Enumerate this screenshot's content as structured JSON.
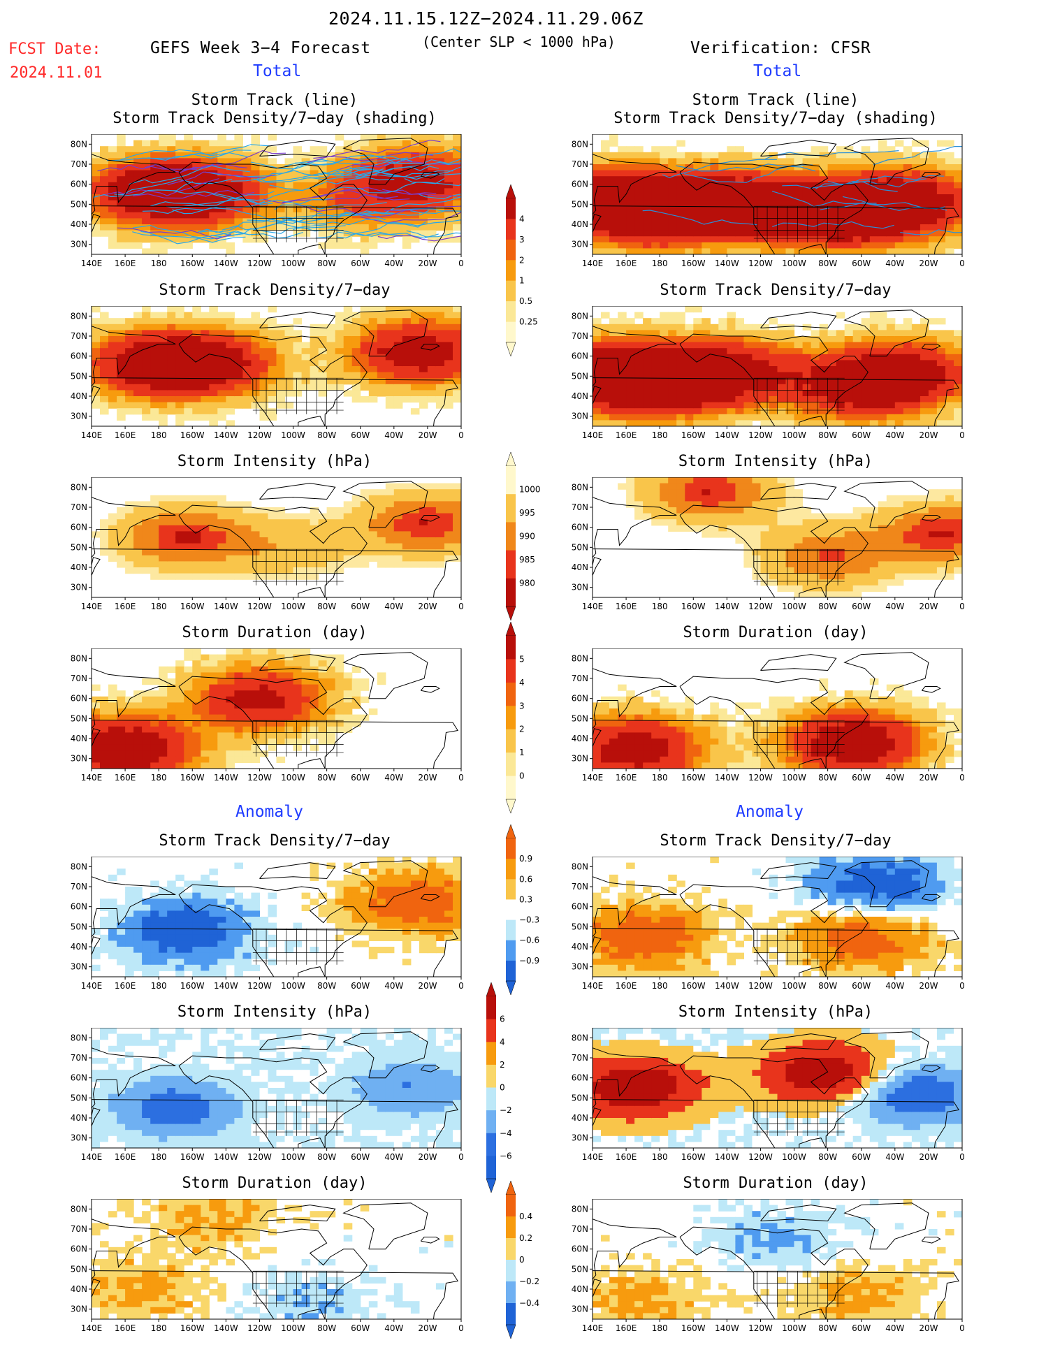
{
  "header": {
    "date_range": "2024.11.15.12Z−2024.11.29.06Z",
    "center_note": "(Center SLP < 1000 hPa)",
    "fcst_label": "FCST Date:",
    "fcst_date": "2024.11.01",
    "forecast_title": "GEFS Week 3−4 Forecast",
    "verification_title": "Verification: CFSR",
    "total_label": "Total",
    "anomaly_label": "Anomaly"
  },
  "panel_titles": {
    "track_line": "Storm Track (line)",
    "track_density_shading": "Storm Track Density/7−day (shading)",
    "track_density": "Storm Track Density/7−day",
    "intensity": "Storm Intensity (hPa)",
    "duration": "Storm Duration (day)"
  },
  "axes": {
    "lat_labels": [
      "80N",
      "70N",
      "60N",
      "50N",
      "40N",
      "30N"
    ],
    "lon_labels": [
      "140E",
      "160E",
      "180",
      "160W",
      "140W",
      "120W",
      "100W",
      "80W",
      "60W",
      "40W",
      "20W",
      "0"
    ]
  },
  "colorbars": [
    {
      "id": "density",
      "labels": [
        "4",
        "3",
        "2",
        "1",
        "0.5",
        "0.25"
      ],
      "colors": [
        "#b80f0a",
        "#e8341c",
        "#f0640f",
        "#f79b0e",
        "#f9c54a",
        "#fbe897",
        "#fff8cc"
      ]
    },
    {
      "id": "intensity",
      "labels": [
        "1000",
        "995",
        "990",
        "985",
        "980"
      ],
      "colors": [
        "#fff8cc",
        "#f9c54a",
        "#f0871a",
        "#e8341c",
        "#b80f0a"
      ]
    },
    {
      "id": "duration",
      "labels": [
        "5",
        "4",
        "3",
        "2",
        "1",
        "0"
      ],
      "colors": [
        "#b80f0a",
        "#e8341c",
        "#f0640f",
        "#f79b0e",
        "#f9c54a",
        "#fbe897",
        "#fff8cc"
      ]
    },
    {
      "id": "density_anom",
      "labels": [
        "0.9",
        "0.6",
        "0.3",
        "−0.3",
        "−0.6",
        "−0.9"
      ],
      "colors": [
        "#f0640f",
        "#f79b0e",
        "#f9c54a",
        "#ffffff",
        "#bde8f8",
        "#4f9bf0",
        "#1f63d6"
      ]
    },
    {
      "id": "intensity_anom",
      "labels": [
        "6",
        "4",
        "2",
        "0",
        "−2",
        "−4",
        "−6"
      ],
      "colors": [
        "#b80f0a",
        "#e8341c",
        "#f79b0e",
        "#f9d76a",
        "#bde8f8",
        "#6fb0f2",
        "#2c6fe0",
        "#1f63d6"
      ]
    },
    {
      "id": "duration_anom",
      "labels": [
        "0.4",
        "0.2",
        "0",
        "−0.2",
        "−0.4"
      ],
      "colors": [
        "#f0640f",
        "#f79b0e",
        "#f9d76a",
        "#bde8f8",
        "#6fb0f2",
        "#1f63d6"
      ]
    }
  ],
  "chart_data": [
    {
      "type": "heatmap",
      "panel": "forecast-total-track",
      "title": "Storm Track (line)",
      "subtitle": "Storm Track Density/7−day (shading)",
      "ylim": [
        25,
        85
      ],
      "unit": "storms/7-day",
      "hotspots": [
        {
          "lon": 175,
          "lat": 56,
          "value": 3.5
        },
        {
          "lon": -155,
          "lat": 56,
          "value": 3.5
        },
        {
          "lon": -25,
          "lat": 62,
          "value": 3.5
        },
        {
          "lon": -60,
          "lat": 52,
          "value": 1.5
        }
      ]
    },
    {
      "type": "heatmap",
      "panel": "verif-total-track",
      "title": "Storm Track (line)",
      "subtitle": "Storm Track Density/7−day (shading)",
      "ylim": [
        25,
        85
      ],
      "hotspots": [
        {
          "lon": 150,
          "lat": 52,
          "value": 4
        },
        {
          "lon": 178,
          "lat": 46,
          "value": 4
        },
        {
          "lon": -140,
          "lat": 50,
          "value": 4
        },
        {
          "lon": -100,
          "lat": 47,
          "value": 3
        },
        {
          "lon": -62,
          "lat": 45,
          "value": 4
        },
        {
          "lon": -30,
          "lat": 52,
          "value": 3.5
        }
      ]
    },
    {
      "type": "heatmap",
      "panel": "forecast-total-density",
      "title": "Storm Track Density/7−day",
      "ylim": [
        25,
        85
      ],
      "hotspots": [
        {
          "lon": 175,
          "lat": 56,
          "value": 3.5
        },
        {
          "lon": -150,
          "lat": 56,
          "value": 3.5
        },
        {
          "lon": -25,
          "lat": 62,
          "value": 4
        }
      ]
    },
    {
      "type": "heatmap",
      "panel": "verif-total-density",
      "title": "Storm Track Density/7−day",
      "ylim": [
        25,
        85
      ],
      "hotspots": [
        {
          "lon": 150,
          "lat": 52,
          "value": 4
        },
        {
          "lon": 178,
          "lat": 46,
          "value": 4
        },
        {
          "lon": -140,
          "lat": 52,
          "value": 4
        },
        {
          "lon": -62,
          "lat": 45,
          "value": 4
        },
        {
          "lon": -30,
          "lat": 52,
          "value": 3
        }
      ]
    },
    {
      "type": "heatmap",
      "panel": "forecast-total-intensity",
      "title": "Storm Intensity (hPa)",
      "ylim": [
        25,
        85
      ],
      "unit": "hPa",
      "hotspots": [
        {
          "lon": -165,
          "lat": 55,
          "value": 982
        },
        {
          "lon": -20,
          "lat": 62,
          "value": 982
        },
        {
          "lon": -100,
          "lat": 50,
          "value": 992
        }
      ]
    },
    {
      "type": "heatmap",
      "panel": "verif-total-intensity",
      "title": "Storm Intensity (hPa)",
      "ylim": [
        25,
        85
      ],
      "hotspots": [
        {
          "lon": -150,
          "lat": 78,
          "value": 982
        },
        {
          "lon": -10,
          "lat": 57,
          "value": 982
        },
        {
          "lon": -80,
          "lat": 45,
          "value": 985
        }
      ]
    },
    {
      "type": "heatmap",
      "panel": "forecast-total-duration",
      "title": "Storm Duration (day)",
      "ylim": [
        25,
        85
      ],
      "unit": "day",
      "hotspots": [
        {
          "lon": 160,
          "lat": 35,
          "value": 4.5
        },
        {
          "lon": -120,
          "lat": 60,
          "value": 3.5
        }
      ]
    },
    {
      "type": "heatmap",
      "panel": "verif-total-duration",
      "title": "Storm Duration (day)",
      "ylim": [
        25,
        85
      ],
      "hotspots": [
        {
          "lon": -65,
          "lat": 38,
          "value": 4.5
        },
        {
          "lon": 165,
          "lat": 35,
          "value": 4
        }
      ]
    },
    {
      "type": "heatmap",
      "panel": "forecast-anom-density",
      "title": "Storm Track Density/7−day",
      "ylim": [
        25,
        85
      ],
      "hotspots": [
        {
          "lon": -25,
          "lat": 62,
          "value": 0.9
        },
        {
          "lon": -165,
          "lat": 48,
          "value": -0.9
        }
      ]
    },
    {
      "type": "heatmap",
      "panel": "verif-anom-density",
      "title": "Storm Track Density/7−day",
      "ylim": [
        25,
        85
      ],
      "hotspots": [
        {
          "lon": -50,
          "lat": 70,
          "value": -0.9
        },
        {
          "lon": -60,
          "lat": 45,
          "value": 0.9
        },
        {
          "lon": 170,
          "lat": 45,
          "value": 0.9
        }
      ]
    },
    {
      "type": "heatmap",
      "panel": "forecast-anom-intensity",
      "title": "Storm Intensity (hPa)",
      "ylim": [
        25,
        85
      ],
      "hotspots": [
        {
          "lon": -170,
          "lat": 45,
          "value": -4
        },
        {
          "lon": -30,
          "lat": 55,
          "value": -3
        }
      ]
    },
    {
      "type": "heatmap",
      "panel": "verif-anom-intensity",
      "title": "Storm Intensity (hPa)",
      "ylim": [
        25,
        85
      ],
      "hotspots": [
        {
          "lon": 165,
          "lat": 55,
          "value": 6
        },
        {
          "lon": -80,
          "lat": 62,
          "value": 6
        },
        {
          "lon": -30,
          "lat": 52,
          "value": -5
        }
      ]
    },
    {
      "type": "heatmap",
      "panel": "forecast-anom-duration",
      "title": "Storm Duration (day)",
      "ylim": [
        25,
        85
      ],
      "hotspots": [
        {
          "lon": -150,
          "lat": 75,
          "value": 0.4
        },
        {
          "lon": 170,
          "lat": 40,
          "value": 0.4
        },
        {
          "lon": -90,
          "lat": 35,
          "value": -0.3
        }
      ]
    },
    {
      "type": "heatmap",
      "panel": "verif-anom-duration",
      "title": "Storm Duration (day)",
      "ylim": [
        25,
        85
      ],
      "hotspots": [
        {
          "lon": -110,
          "lat": 65,
          "value": -0.4
        },
        {
          "lon": -65,
          "lat": 38,
          "value": 0.4
        },
        {
          "lon": 170,
          "lat": 35,
          "value": 0.4
        }
      ]
    }
  ]
}
